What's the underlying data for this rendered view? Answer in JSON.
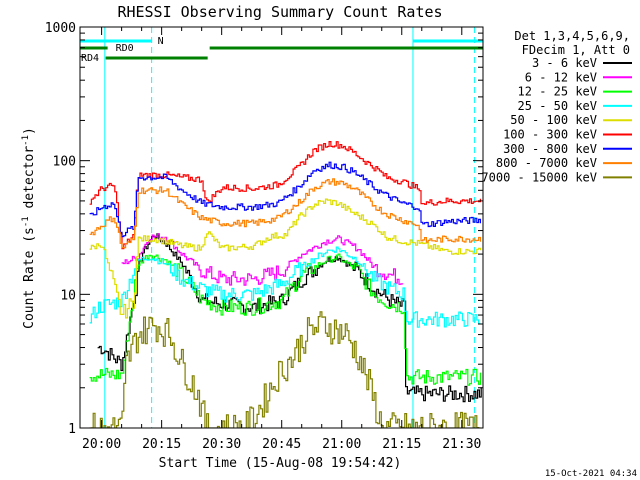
{
  "chart_data": {
    "type": "line",
    "title": "RHESSI Observing Summary Count Rates",
    "xlabel": "Start Time (15-Aug-08 19:54:42)",
    "ylabel_prefix": "Count Rate (s",
    "ylabel_exp1": "-1",
    "ylabel_mid": " detector",
    "ylabel_exp2": "-1",
    "ylabel_suffix": ")",
    "x_range_min": [
      -5.4,
      95.3
    ],
    "y_scale": "log",
    "y_range": [
      1,
      1000
    ],
    "x_ticks": [
      {
        "t": 0,
        "label": "20:00"
      },
      {
        "t": 15,
        "label": "20:15"
      },
      {
        "t": 30,
        "label": "20:30"
      },
      {
        "t": 45,
        "label": "20:45"
      },
      {
        "t": 60,
        "label": "21:00"
      },
      {
        "t": 75,
        "label": "21:15"
      },
      {
        "t": 90,
        "label": "21:30"
      }
    ],
    "y_ticks": [
      {
        "v": 1,
        "label": "1"
      },
      {
        "v": 10,
        "label": "10"
      },
      {
        "v": 100,
        "label": "100"
      },
      {
        "v": 1000,
        "label": "1000"
      }
    ],
    "legend_header": [
      "Det 1,3,4,5,6,9,",
      "FDecim 1, Att 0"
    ],
    "series": [
      {
        "name": "3 - 6 keV",
        "color": "#000000",
        "points": [
          [
            -1,
            4
          ],
          [
            0,
            4
          ],
          [
            5,
            3
          ],
          [
            10,
            20
          ],
          [
            13,
            28
          ],
          [
            16,
            24
          ],
          [
            20,
            17
          ],
          [
            25,
            9
          ],
          [
            30,
            8.5
          ],
          [
            38,
            8
          ],
          [
            45,
            9
          ],
          [
            50,
            13
          ],
          [
            56,
            18
          ],
          [
            59,
            19
          ],
          [
            64,
            15
          ],
          [
            68,
            11
          ],
          [
            72,
            9
          ],
          [
            75.5,
            8
          ],
          [
            76,
            1.8
          ],
          [
            85,
            1.8
          ],
          [
            95,
            1.8
          ]
        ]
      },
      {
        "name": "6 - 12 keV",
        "color": "#ff00ff",
        "points": [
          [
            5,
            17
          ],
          [
            9,
            19
          ],
          [
            12,
            27
          ],
          [
            16,
            27
          ],
          [
            20,
            20
          ],
          [
            25,
            15
          ],
          [
            30,
            13
          ],
          [
            38,
            13
          ],
          [
            45,
            15
          ],
          [
            50,
            20
          ],
          [
            56,
            25
          ],
          [
            59,
            26
          ],
          [
            64,
            22
          ],
          [
            68,
            16
          ],
          [
            72,
            14
          ],
          [
            75.5,
            13
          ]
        ]
      },
      {
        "name": "12 - 25 keV",
        "color": "#00ff00",
        "points": [
          [
            -3,
            2.5
          ],
          [
            5,
            2.5
          ],
          [
            9,
            17
          ],
          [
            12,
            20
          ],
          [
            16,
            18
          ],
          [
            20,
            14
          ],
          [
            25,
            9
          ],
          [
            30,
            8
          ],
          [
            38,
            8
          ],
          [
            45,
            9
          ],
          [
            50,
            14
          ],
          [
            56,
            18
          ],
          [
            59,
            19
          ],
          [
            64,
            15
          ],
          [
            68,
            10
          ],
          [
            72,
            8.5
          ],
          [
            75.5,
            8
          ],
          [
            76,
            2.4
          ],
          [
            86,
            2.4
          ],
          [
            95,
            2.4
          ]
        ]
      },
      {
        "name": "25 - 50 keV",
        "color": "#00ffff",
        "points": [
          [
            -3,
            6.5
          ],
          [
            -1,
            8
          ],
          [
            5,
            9
          ],
          [
            9,
            18
          ],
          [
            12,
            19
          ],
          [
            16,
            17
          ],
          [
            20,
            13
          ],
          [
            25,
            11
          ],
          [
            30,
            10
          ],
          [
            38,
            10
          ],
          [
            45,
            12
          ],
          [
            50,
            16
          ],
          [
            56,
            21
          ],
          [
            59,
            22
          ],
          [
            64,
            18
          ],
          [
            68,
            13
          ],
          [
            72,
            11
          ],
          [
            75.5,
            10
          ],
          [
            76,
            6.5
          ],
          [
            86,
            6.5
          ],
          [
            95,
            6.5
          ]
        ]
      },
      {
        "name": "50 - 100 keV",
        "color": "#dddd00",
        "points": [
          [
            -3,
            22
          ],
          [
            0,
            24
          ],
          [
            5,
            7
          ],
          [
            8,
            9
          ],
          [
            9,
            26
          ],
          [
            13,
            26
          ],
          [
            16,
            25
          ],
          [
            20,
            23
          ],
          [
            25,
            22
          ],
          [
            26,
            30
          ],
          [
            30,
            22
          ],
          [
            38,
            23
          ],
          [
            42,
            27
          ],
          [
            46,
            28
          ],
          [
            49,
            37
          ],
          [
            53,
            47
          ],
          [
            56,
            50
          ],
          [
            59,
            48
          ],
          [
            62,
            42
          ],
          [
            66,
            36
          ],
          [
            69,
            31
          ],
          [
            71,
            27
          ],
          [
            75,
            25
          ],
          [
            79,
            24
          ],
          [
            86,
            21
          ],
          [
            95,
            21
          ]
        ]
      },
      {
        "name": "100 - 300 keV",
        "color": "#ff0000",
        "points": [
          [
            -3,
            50
          ],
          [
            0,
            62
          ],
          [
            3,
            65
          ],
          [
            4,
            42
          ],
          [
            5,
            22
          ],
          [
            8,
            28
          ],
          [
            9,
            78
          ],
          [
            16,
            78
          ],
          [
            20,
            75
          ],
          [
            25,
            72
          ],
          [
            26,
            48
          ],
          [
            30,
            63
          ],
          [
            38,
            62
          ],
          [
            44,
            66
          ],
          [
            49,
            88
          ],
          [
            53,
            120
          ],
          [
            57,
            135
          ],
          [
            60,
            130
          ],
          [
            63,
            115
          ],
          [
            66,
            98
          ],
          [
            69,
            85
          ],
          [
            71,
            75
          ],
          [
            75,
            70
          ],
          [
            79,
            62
          ],
          [
            80,
            48
          ],
          [
            86,
            50
          ],
          [
            95,
            50
          ]
        ]
      },
      {
        "name": "300 - 800 keV",
        "color": "#0000ff",
        "points": [
          [
            -3,
            38
          ],
          [
            0,
            45
          ],
          [
            3,
            48
          ],
          [
            4,
            35
          ],
          [
            5,
            28
          ],
          [
            8,
            32
          ],
          [
            9,
            75
          ],
          [
            16,
            75
          ],
          [
            20,
            60
          ],
          [
            25,
            48
          ],
          [
            30,
            45
          ],
          [
            38,
            45
          ],
          [
            44,
            48
          ],
          [
            49,
            63
          ],
          [
            53,
            85
          ],
          [
            57,
            93
          ],
          [
            60,
            90
          ],
          [
            63,
            82
          ],
          [
            66,
            70
          ],
          [
            69,
            60
          ],
          [
            71,
            55
          ],
          [
            75,
            48
          ],
          [
            79,
            45
          ],
          [
            80,
            33
          ],
          [
            86,
            35
          ],
          [
            95,
            36
          ]
        ]
      },
      {
        "name": "800 - 7000 keV",
        "color": "#ff8000",
        "points": [
          [
            -3,
            28
          ],
          [
            0,
            33
          ],
          [
            3,
            38
          ],
          [
            4,
            30
          ],
          [
            5,
            22
          ],
          [
            8,
            26
          ],
          [
            9,
            60
          ],
          [
            16,
            60
          ],
          [
            20,
            47
          ],
          [
            25,
            37
          ],
          [
            30,
            34
          ],
          [
            38,
            34
          ],
          [
            44,
            37
          ],
          [
            49,
            48
          ],
          [
            53,
            63
          ],
          [
            57,
            70
          ],
          [
            60,
            68
          ],
          [
            63,
            62
          ],
          [
            66,
            52
          ],
          [
            69,
            44
          ],
          [
            71,
            40
          ],
          [
            75,
            36
          ],
          [
            79,
            33
          ],
          [
            80,
            25
          ],
          [
            86,
            26
          ],
          [
            95,
            26
          ]
        ]
      },
      {
        "name": "7000 - 15000 keV",
        "color": "#808000",
        "points": [
          [
            -3,
            1
          ],
          [
            5,
            1
          ],
          [
            6,
            3
          ],
          [
            9,
            5
          ],
          [
            13,
            6
          ],
          [
            17,
            5
          ],
          [
            20,
            3
          ],
          [
            24,
            1.8
          ],
          [
            26,
            1
          ],
          [
            31,
            1
          ],
          [
            36,
            1
          ],
          [
            40,
            1.5
          ],
          [
            44,
            2.5
          ],
          [
            48,
            3.5
          ],
          [
            51,
            5
          ],
          [
            55,
            6
          ],
          [
            58,
            5.5
          ],
          [
            61,
            5
          ],
          [
            64,
            3.5
          ],
          [
            67,
            2
          ],
          [
            70,
            1
          ],
          [
            76,
            1
          ],
          [
            95,
            1
          ]
        ]
      }
    ],
    "bars": [
      {
        "label": "N",
        "color": "#00ffff",
        "row": 1,
        "segments": [
          [
            -5.4,
            12.5
          ],
          [
            77.8,
            95.3
          ]
        ]
      },
      {
        "label": "RD0",
        "color": "#008000",
        "row": 2,
        "segments": [
          [
            -5.4,
            1.5
          ],
          [
            27,
            95.3
          ]
        ]
      },
      {
        "label": "RD4",
        "color": "#008000",
        "row": 3,
        "segments": [
          [
            1,
            26.5
          ]
        ]
      }
    ],
    "vlines_solid": [
      0.8,
      77.8
    ],
    "vlines_dashed": [
      12.5,
      93.2
    ],
    "grid": false,
    "legend_placement": "right"
  },
  "timestamp": "15-Oct-2021 04:34"
}
